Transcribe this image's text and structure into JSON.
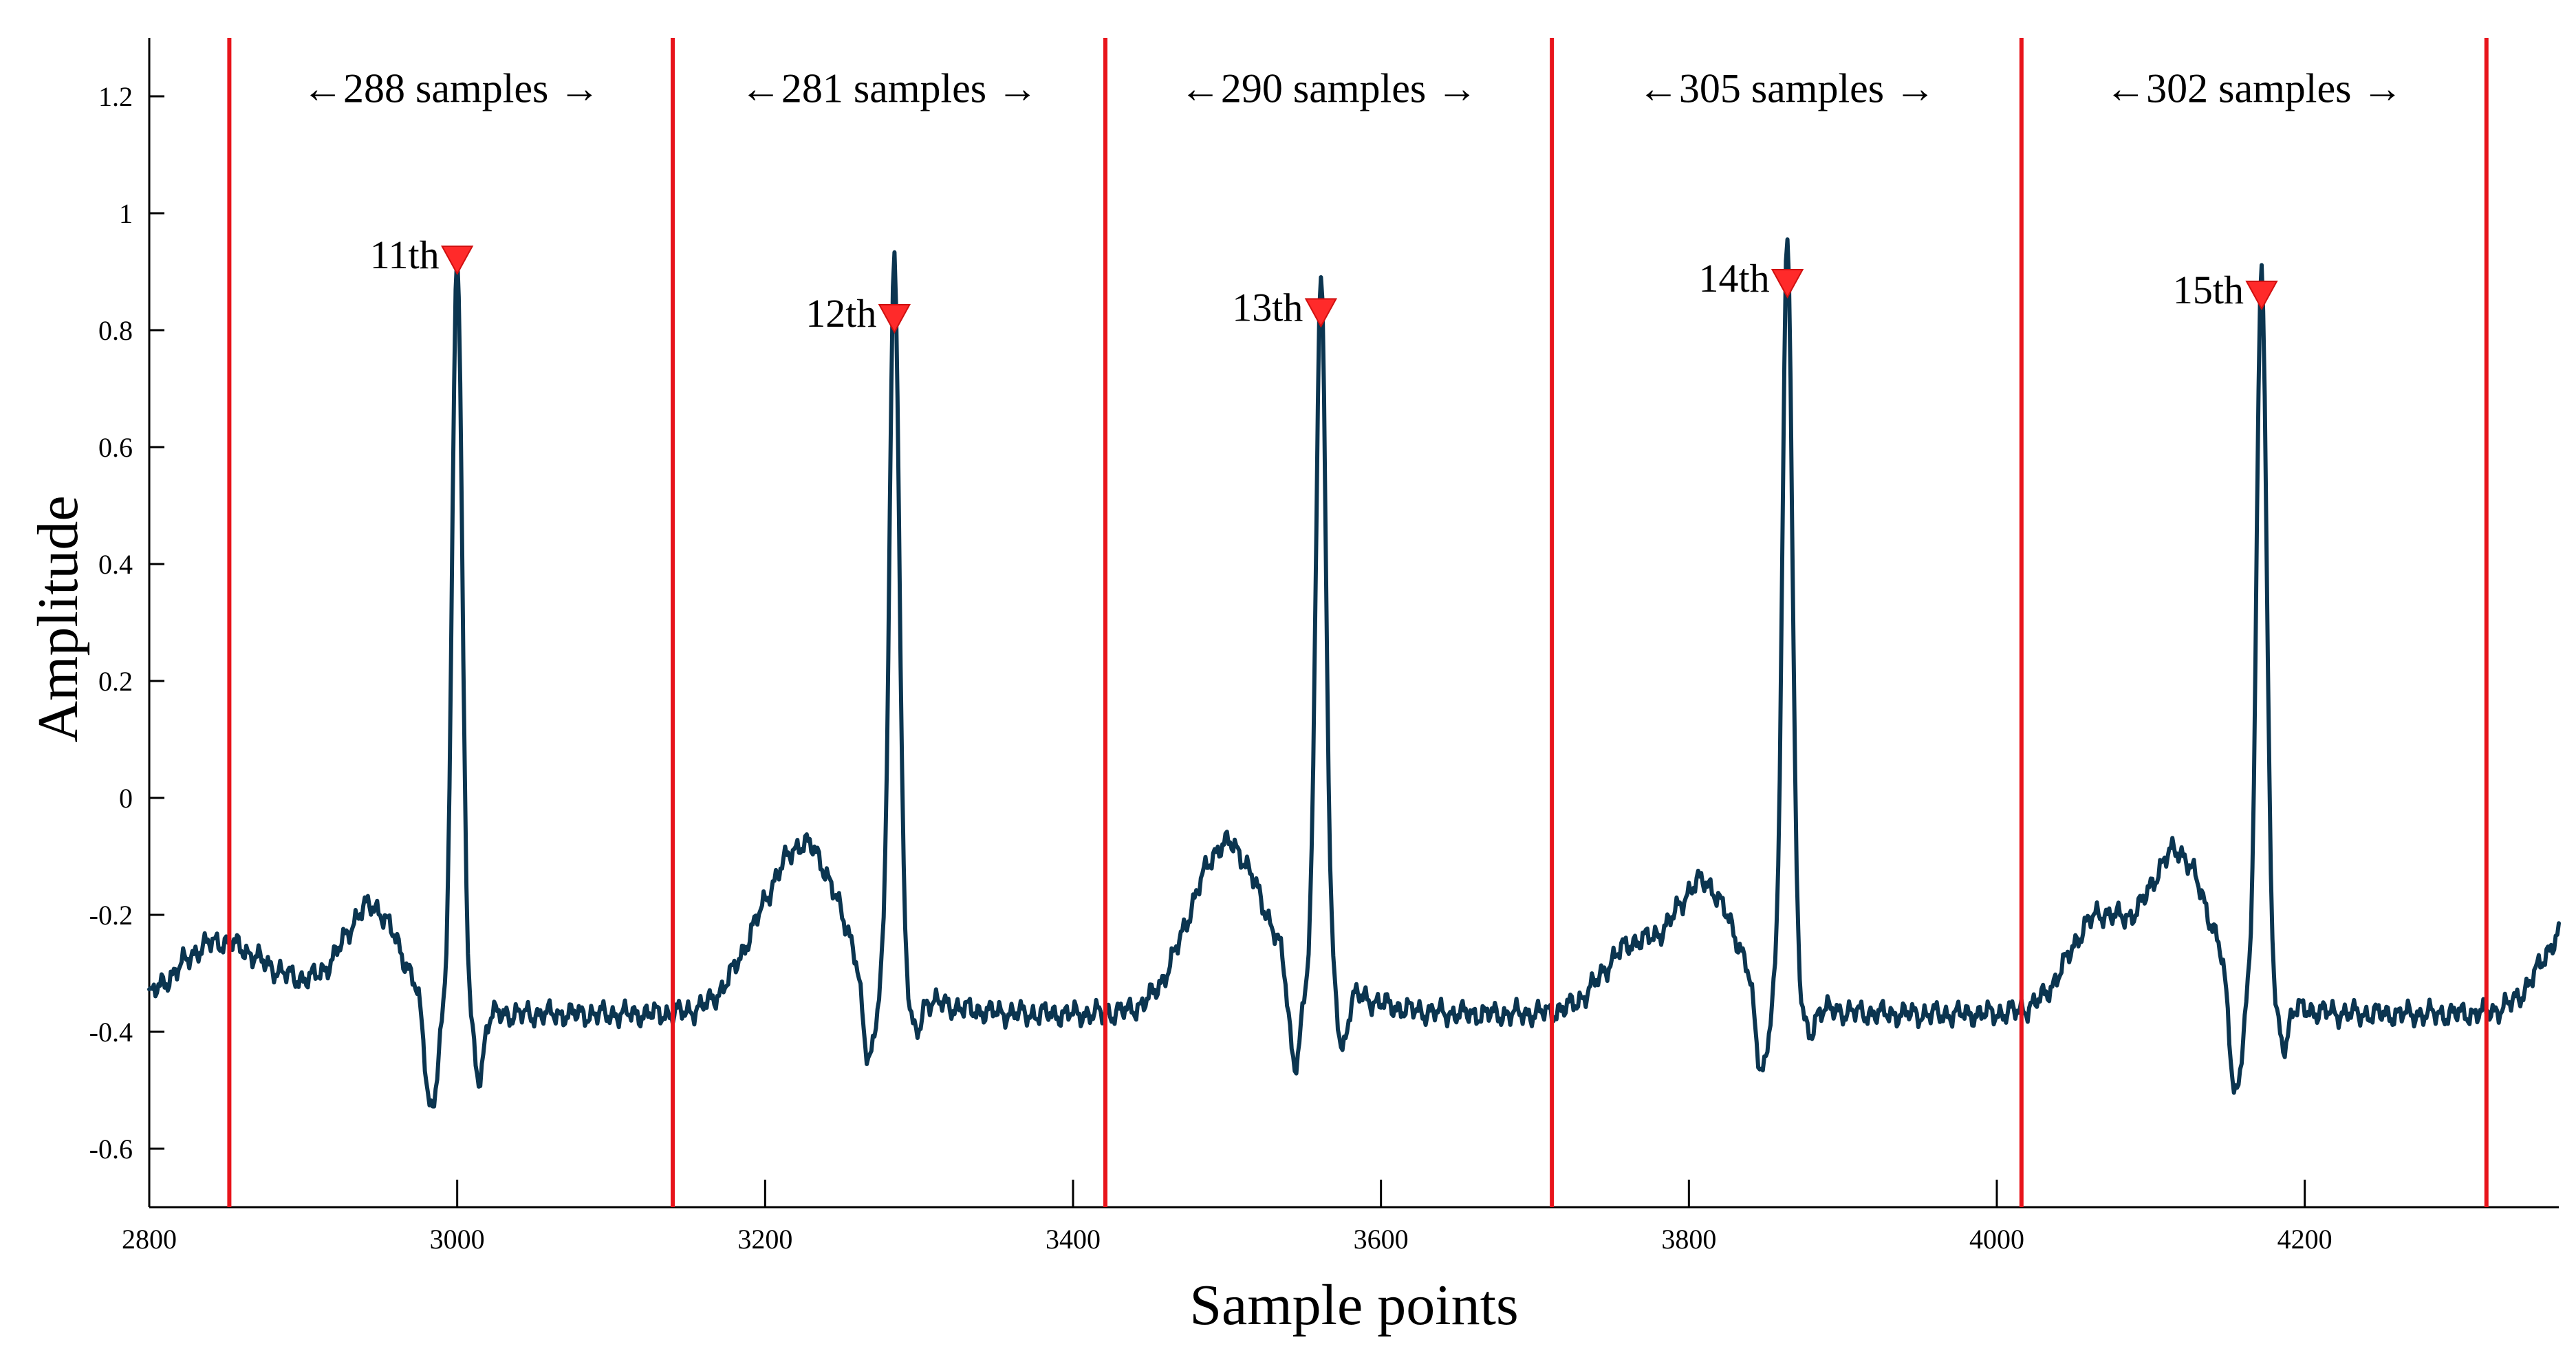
{
  "chart_data": {
    "type": "line",
    "title": "",
    "xlabel": "Sample points",
    "ylabel": "Amplitude",
    "xlim": [
      2800,
      4365
    ],
    "ylim": [
      -0.7,
      1.3
    ],
    "xticks": [
      2800,
      3000,
      3200,
      3400,
      3600,
      3800,
      4000,
      4200
    ],
    "xtick_labels": [
      "2800",
      "3000",
      "3200",
      "3400",
      "3600",
      "3800",
      "4000",
      "4200"
    ],
    "yticks": [
      -0.6,
      -0.4,
      -0.2,
      0,
      0.2,
      0.4,
      0.6,
      0.8,
      1,
      1.2
    ],
    "ytick_labels": [
      "-0.6",
      "-0.4",
      "-0.2",
      "0",
      "0.2",
      "0.4",
      "0.6",
      "0.8",
      "1",
      "1.2"
    ],
    "grid": false,
    "colors": {
      "signal": "#0b3550",
      "boundary": "#e8141b",
      "marker": "#ff2a2a"
    },
    "boundaries": [
      2852,
      3140,
      3421,
      3711,
      4016,
      4318
    ],
    "intervals": [
      {
        "label": "←288 samples →",
        "start": 2852,
        "end": 3140
      },
      {
        "label": "←281 samples →",
        "start": 3140,
        "end": 3421
      },
      {
        "label": "←290 samples →",
        "start": 3421,
        "end": 3711
      },
      {
        "label": "←305 samples →",
        "start": 3711,
        "end": 4016
      },
      {
        "label": "←302 samples →",
        "start": 4016,
        "end": 4318
      }
    ],
    "peaks": [
      {
        "label": "11th",
        "x": 3000,
        "y": 0.92
      },
      {
        "label": "12th",
        "x": 3284,
        "y": 0.82
      },
      {
        "label": "13th",
        "x": 3561,
        "y": 0.83
      },
      {
        "label": "14th",
        "x": 3864,
        "y": 0.88
      },
      {
        "label": "15th",
        "x": 4172,
        "y": 0.86
      }
    ],
    "beat_shape": {
      "baseline": -0.37,
      "r_amplitudes": [
        0.94,
        0.87,
        0.84,
        0.94,
        0.89
      ],
      "q_depths": [
        -0.55,
        -0.53,
        -0.54,
        -0.52,
        -0.57
      ],
      "s_depths": [
        -0.48,
        -0.44,
        -0.47,
        -0.42,
        -0.44
      ],
      "p_peaks": [
        -0.2,
        -0.17,
        -0.2,
        -0.2,
        -0.17
      ],
      "t_levels": [
        -0.26,
        -0.25,
        -0.28,
        -0.24,
        -0.25
      ]
    },
    "series": [
      {
        "values_note": ""
      }
    ]
  }
}
